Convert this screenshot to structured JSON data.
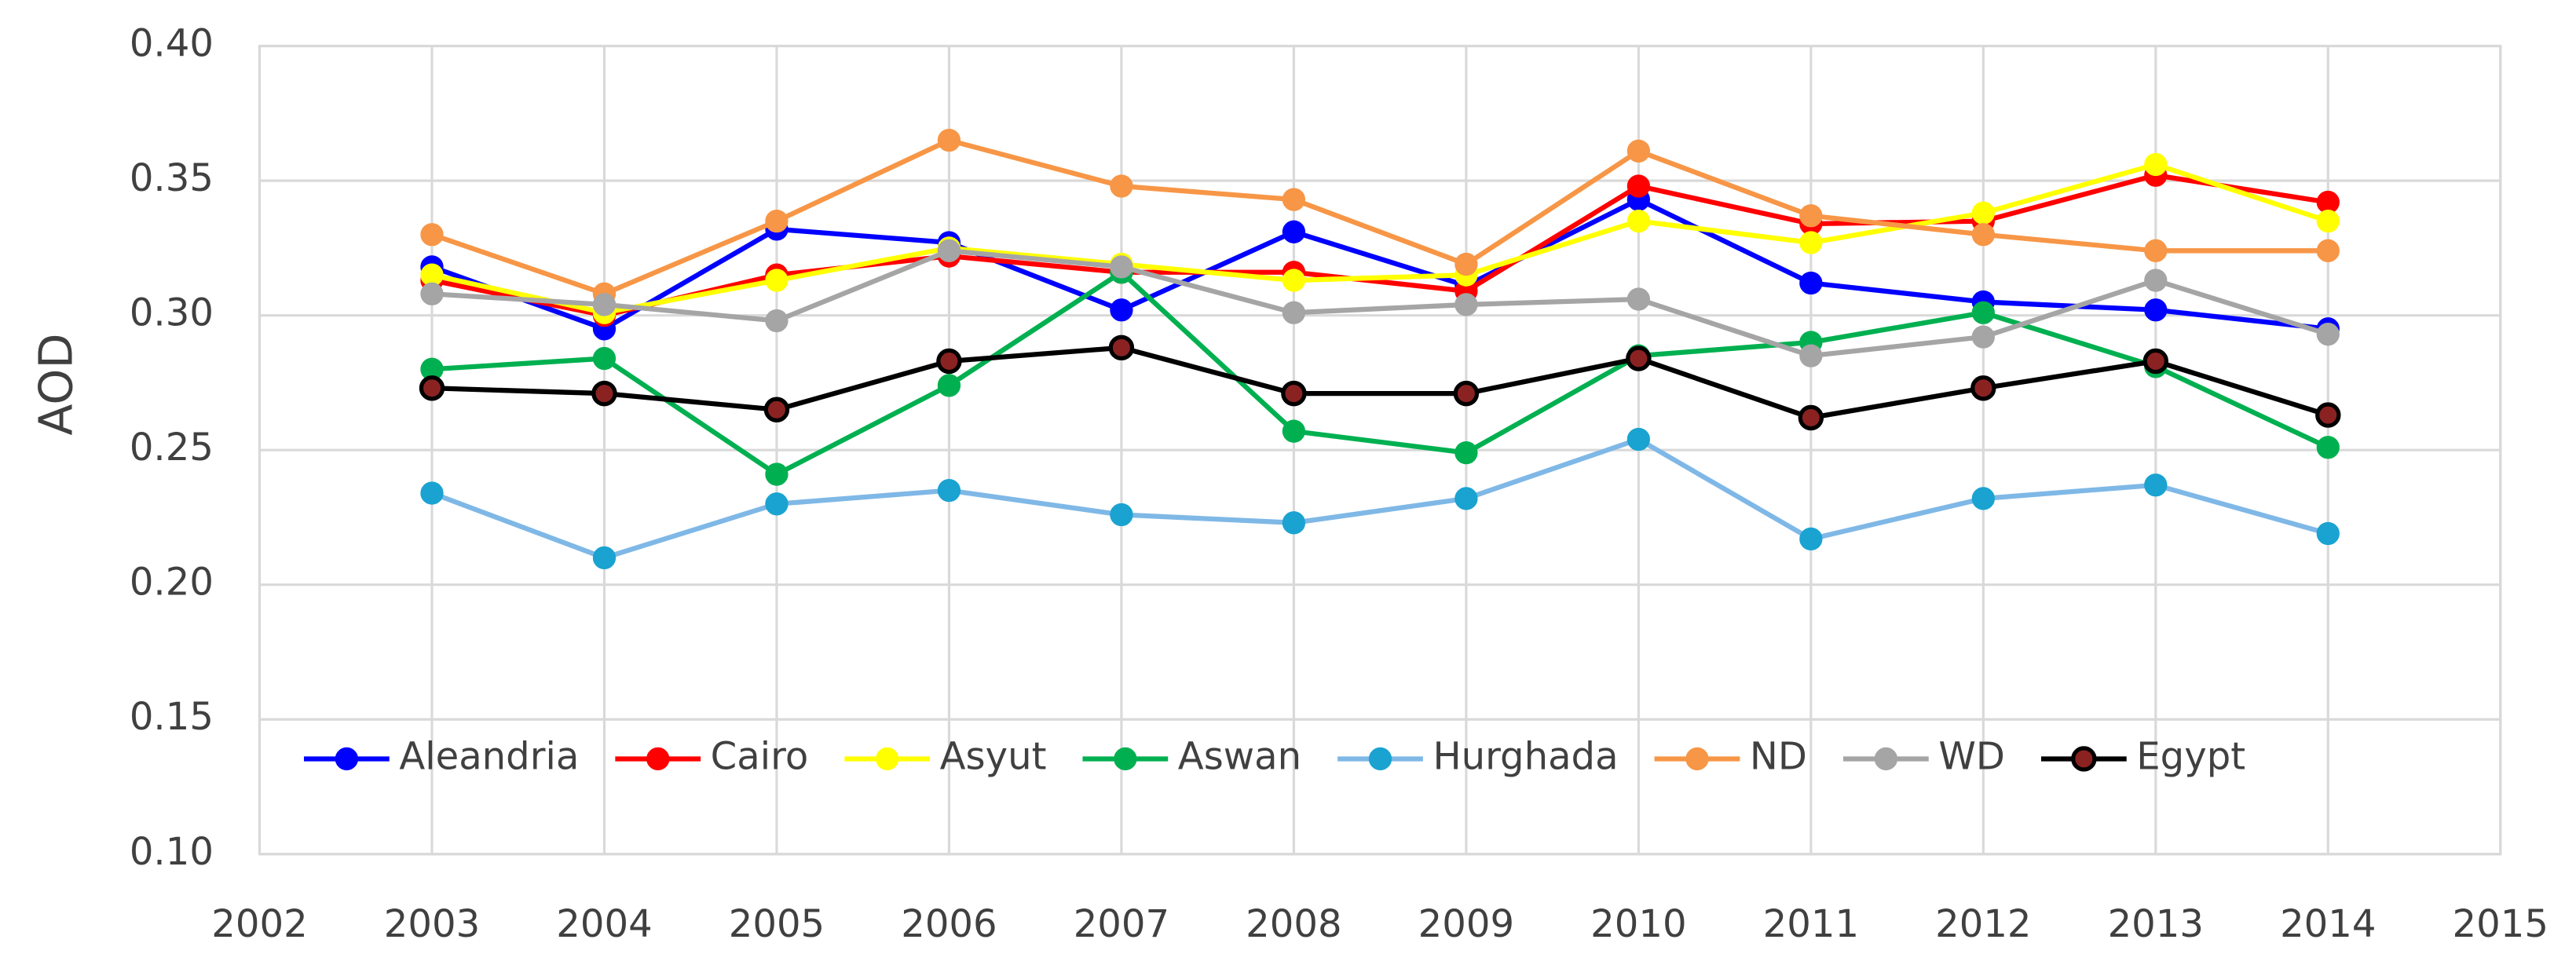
{
  "chart_data": {
    "type": "line",
    "y_label": "AOD",
    "x": [
      2003,
      2004,
      2005,
      2006,
      2007,
      2008,
      2009,
      2010,
      2011,
      2012,
      2013,
      2014
    ],
    "xlim": [
      2002,
      2015
    ],
    "xticks": [
      2002,
      2003,
      2004,
      2005,
      2006,
      2007,
      2008,
      2009,
      2010,
      2011,
      2012,
      2013,
      2014,
      2015
    ],
    "ylim": [
      0.1,
      0.4
    ],
    "yticks": [
      {
        "value": 0.1,
        "label": "0.10"
      },
      {
        "value": 0.15,
        "label": "0.15"
      },
      {
        "value": 0.2,
        "label": "0.20"
      },
      {
        "value": 0.25,
        "label": "0.25"
      },
      {
        "value": 0.3,
        "label": "0.30"
      },
      {
        "value": 0.35,
        "label": "0.35"
      },
      {
        "value": 0.4,
        "label": "0.40"
      }
    ],
    "grid": true,
    "legend": "bottom",
    "series": [
      {
        "name": "Aleandria",
        "color": "#0000ff",
        "values": [
          0.318,
          0.295,
          0.332,
          0.327,
          0.302,
          0.331,
          0.311,
          0.343,
          0.312,
          0.305,
          0.302,
          0.295
        ]
      },
      {
        "name": "Cairo",
        "color": "#ff0000",
        "values": [
          0.313,
          0.3,
          0.315,
          0.322,
          0.316,
          0.316,
          0.309,
          0.348,
          0.334,
          0.335,
          0.352,
          0.342
        ]
      },
      {
        "name": "Asyut",
        "color": "#ffff00",
        "values": [
          0.315,
          0.301,
          0.313,
          0.325,
          0.319,
          0.313,
          0.315,
          0.335,
          0.327,
          0.338,
          0.356,
          0.335
        ]
      },
      {
        "name": "Aswan",
        "color": "#00b050",
        "values": [
          0.28,
          0.284,
          0.241,
          0.274,
          0.316,
          0.257,
          0.249,
          0.285,
          0.29,
          0.301,
          0.281,
          0.251
        ]
      },
      {
        "name": "Hurghada",
        "color": "#7fb8e6",
        "marker_color": "#1aa3d1",
        "values": [
          0.234,
          0.21,
          0.23,
          0.235,
          0.226,
          0.223,
          0.232,
          0.254,
          0.217,
          0.232,
          0.237,
          0.219
        ]
      },
      {
        "name": "ND",
        "color": "#f79646",
        "values": [
          0.33,
          0.308,
          0.335,
          0.365,
          0.348,
          0.343,
          0.319,
          0.361,
          0.337,
          0.33,
          0.324,
          0.324
        ]
      },
      {
        "name": "WD",
        "color": "#a5a5a5",
        "values": [
          0.308,
          0.304,
          0.298,
          0.324,
          0.318,
          0.301,
          0.304,
          0.306,
          0.285,
          0.292,
          0.313,
          0.293
        ]
      },
      {
        "name": "Egypt",
        "color": "#000000",
        "marker_color": "#8b2222",
        "values": [
          0.273,
          0.271,
          0.265,
          0.283,
          0.288,
          0.271,
          0.271,
          0.284,
          0.262,
          0.273,
          0.283,
          0.263
        ]
      }
    ]
  }
}
